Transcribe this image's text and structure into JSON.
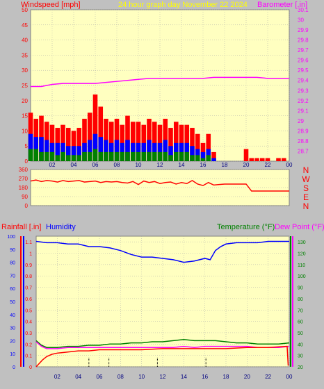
{
  "header": {
    "windspeed_label": "Windspeed [mph]",
    "graph_title": "24 hour graph day   November 22 2024",
    "barometer_label": "Barometer [.in]"
  },
  "panel3_header": {
    "rainfall_label": "Rainfall [.in]",
    "humidity_label": "Humidity",
    "temperature_label": "Temperature (°F)",
    "dewpoint_label": "Dew Point (°F)"
  },
  "colors": {
    "background": "#c0c0c0",
    "plot_bg": "#ffffc0",
    "gust": "#ff0000",
    "wind_avg": "#0000ff",
    "wind_low": "#008000",
    "barometer": "#ff00ff",
    "direction": "#ff0000",
    "humidity": "#0000ff",
    "temperature": "#008000",
    "dewpoint": "#ff00ff",
    "rain": "#ff0000",
    "title": "#ffff00",
    "grid": "#aaaaaa"
  },
  "chart_data": [
    {
      "type": "line",
      "panel": "wind-barometer",
      "title": "24 hour graph day   November 22 2024",
      "xlabel": "",
      "ylabel": "Windspeed [mph]",
      "y2label": "Barometer [.in]",
      "x_ticks": [
        "02",
        "04",
        "06",
        "08",
        "10",
        "12",
        "14",
        "16",
        "18",
        "20",
        "22",
        "00"
      ],
      "xlim": [
        0,
        24
      ],
      "ylim": [
        0,
        50
      ],
      "y_ticks": [
        0,
        5,
        10,
        15,
        20,
        25,
        30,
        35,
        40,
        45,
        50
      ],
      "y2lim": [
        28.6,
        30.1
      ],
      "y2_ticks": [
        "28.7",
        "28.8",
        "28.9",
        "29",
        "29.1",
        "29.2",
        "29.3",
        "29.4",
        "29.5",
        "29.6",
        "29.7",
        "29.8",
        "29.9",
        "30",
        "30.1"
      ],
      "grid": true,
      "series": [
        {
          "name": "Gust",
          "axis": "left",
          "style": "bars",
          "color": "#ff0000",
          "x": [
            0,
            0.5,
            1,
            1.5,
            2,
            2.5,
            3,
            3.5,
            4,
            4.5,
            5,
            5.5,
            6,
            6.5,
            7,
            7.5,
            8,
            8.5,
            9,
            9.5,
            10,
            10.5,
            11,
            11.5,
            12,
            12.5,
            13,
            13.5,
            14,
            14.5,
            15,
            15.5,
            16,
            16.5,
            17,
            17.5,
            18,
            18.5,
            19,
            19.5,
            20,
            20.5,
            21,
            21.5,
            22,
            22.5,
            23,
            23.5,
            24
          ],
          "values": [
            16,
            14,
            15,
            13,
            12,
            11,
            12,
            11,
            10,
            11,
            14,
            16,
            22,
            18,
            14,
            13,
            14,
            12,
            15,
            13,
            13,
            12,
            14,
            13,
            12,
            14,
            11,
            13,
            12,
            12,
            11,
            9,
            6,
            9,
            3,
            0,
            0,
            0,
            0,
            0,
            4,
            1,
            1,
            1,
            1,
            0,
            1,
            1,
            0
          ]
        },
        {
          "name": "Wind",
          "axis": "left",
          "style": "bars",
          "color": "#0000ff",
          "x": [
            0,
            0.5,
            1,
            1.5,
            2,
            2.5,
            3,
            3.5,
            4,
            4.5,
            5,
            5.5,
            6,
            6.5,
            7,
            7.5,
            8,
            8.5,
            9,
            9.5,
            10,
            10.5,
            11,
            11.5,
            12,
            12.5,
            13,
            13.5,
            14,
            14.5,
            15,
            15.5,
            16,
            16.5,
            17,
            17.5,
            18
          ],
          "values": [
            9,
            8,
            8,
            7,
            6,
            6,
            6,
            5,
            5,
            5,
            6,
            7,
            9,
            8,
            7,
            6,
            7,
            6,
            7,
            6,
            6,
            6,
            7,
            6,
            6,
            7,
            5,
            6,
            6,
            6,
            5,
            4,
            3,
            4,
            1,
            0,
            0
          ]
        },
        {
          "name": "Low",
          "axis": "left",
          "style": "bars",
          "color": "#008000",
          "x": [
            0,
            0.5,
            1,
            1.5,
            2,
            2.5,
            3,
            3.5,
            4,
            4.5,
            5,
            5.5,
            6,
            6.5,
            7,
            7.5,
            8,
            8.5,
            9,
            9.5,
            10,
            10.5,
            11,
            11.5,
            12,
            12.5,
            13,
            13.5,
            14,
            14.5,
            15,
            15.5,
            16,
            16.5,
            17,
            17.5,
            18
          ],
          "values": [
            4,
            4,
            3,
            3,
            3,
            2,
            3,
            2,
            2,
            2,
            3,
            3,
            4,
            3,
            3,
            3,
            3,
            3,
            3,
            3,
            3,
            3,
            3,
            3,
            3,
            3,
            2,
            3,
            3,
            3,
            2,
            2,
            1,
            2,
            0,
            0,
            0
          ]
        },
        {
          "name": "Barometer",
          "axis": "right",
          "style": "line",
          "color": "#ff00ff",
          "x": [
            0,
            1,
            2,
            3,
            4,
            5,
            6,
            7,
            8,
            9,
            10,
            11,
            12,
            13,
            14,
            15,
            16,
            17,
            18,
            19,
            20,
            21,
            22,
            23,
            24
          ],
          "values": [
            29.34,
            29.34,
            29.36,
            29.37,
            29.37,
            29.37,
            29.37,
            29.38,
            29.39,
            29.4,
            29.41,
            29.42,
            29.42,
            29.42,
            29.42,
            29.42,
            29.42,
            29.43,
            29.43,
            29.43,
            29.43,
            29.43,
            29.42,
            29.42,
            29.42
          ]
        }
      ]
    },
    {
      "type": "line",
      "panel": "wind-direction",
      "xlabel": "",
      "ylabel": "",
      "xlim": [
        0,
        24
      ],
      "ylim": [
        0,
        360
      ],
      "y_ticks": [
        0,
        90,
        180,
        270,
        360
      ],
      "compass_labels": [
        "N",
        "W",
        "S",
        "E",
        "N"
      ],
      "grid": true,
      "series": [
        {
          "name": "Direction",
          "color": "#ff0000",
          "x": [
            0,
            0.5,
            1,
            1.5,
            2,
            2.5,
            3,
            3.5,
            4,
            4.5,
            5,
            5.5,
            6,
            6.5,
            7,
            7.5,
            8,
            8.5,
            9,
            9.5,
            10,
            10.5,
            11,
            11.5,
            12,
            12.5,
            13,
            13.5,
            14,
            14.5,
            15,
            15.5,
            16,
            16.5,
            17,
            17.5,
            18,
            19,
            20,
            20.5,
            21,
            22,
            23,
            24
          ],
          "values": [
            245,
            255,
            240,
            250,
            245,
            235,
            250,
            240,
            245,
            250,
            235,
            240,
            245,
            230,
            240,
            235,
            240,
            230,
            225,
            240,
            210,
            245,
            230,
            240,
            220,
            230,
            235,
            215,
            230,
            220,
            250,
            215,
            200,
            230,
            205,
            210,
            215,
            215,
            215,
            145,
            145,
            145,
            145,
            145
          ]
        }
      ]
    },
    {
      "type": "line",
      "panel": "rain-humidity-temperature",
      "xlabel": "",
      "ylabel": "Rainfall [.in]",
      "y2label": "Temperature (°F)",
      "xlim": [
        0,
        24
      ],
      "rain_ylim": [
        0,
        1.15
      ],
      "rain_ticks": [
        "0",
        "0.1",
        "0.2",
        "0.3",
        "0.4",
        "0.5",
        "0.6",
        "0.7",
        "0.8",
        "0.9",
        "1",
        "1.1"
      ],
      "humidity_ylim": [
        0,
        100
      ],
      "humidity_ticks": [
        "0",
        "10",
        "20",
        "30",
        "40",
        "50",
        "60",
        "70",
        "80",
        "90",
        "100"
      ],
      "temp_ylim": [
        20,
        135
      ],
      "temp_ticks": [
        "20",
        "30",
        "40",
        "50",
        "60",
        "70",
        "80",
        "90",
        "100",
        "110",
        "120",
        "130"
      ],
      "grid": true,
      "series": [
        {
          "name": "Humidity",
          "axis": "humidity",
          "color": "#0000ff",
          "x": [
            0,
            1,
            2,
            3,
            4,
            5,
            6,
            7,
            8,
            9,
            10,
            11,
            12,
            13,
            14,
            15,
            16,
            16.5,
            17,
            17.5,
            18,
            19,
            20,
            21,
            22,
            23,
            24
          ],
          "values": [
            96,
            95,
            95,
            94,
            94,
            92,
            92,
            91,
            89,
            86,
            84,
            84,
            83,
            82,
            80,
            81,
            83,
            82,
            89,
            92,
            94,
            95,
            95,
            95,
            96,
            96,
            96
          ]
        },
        {
          "name": "Temperature",
          "axis": "temperature",
          "color": "#008000",
          "x": [
            0,
            0.5,
            1,
            2,
            3,
            4,
            5,
            6,
            7,
            8,
            9,
            10,
            11,
            12,
            13,
            14,
            15,
            16,
            17,
            18,
            19,
            20,
            21,
            22,
            23,
            24
          ],
          "values": [
            43,
            39,
            37,
            37,
            38,
            38,
            39,
            39,
            40,
            40,
            41,
            41,
            42,
            42,
            43,
            44,
            43,
            43,
            43,
            42,
            41,
            41,
            40,
            40,
            40,
            41
          ]
        },
        {
          "name": "Dew Point",
          "axis": "temperature",
          "color": "#ff00ff",
          "x": [
            0,
            0.5,
            1,
            2,
            3,
            4,
            5,
            6,
            7,
            8,
            9,
            10,
            11,
            12,
            13,
            14,
            15,
            16,
            17,
            18,
            19,
            20,
            21,
            22,
            23,
            24
          ],
          "values": [
            42,
            38,
            36,
            36,
            37,
            37,
            37,
            37,
            37,
            37,
            37,
            37,
            37,
            37,
            37,
            38,
            37,
            38,
            38,
            38,
            38,
            38,
            37,
            37,
            37,
            38
          ]
        },
        {
          "name": "Rainfall",
          "axis": "rain",
          "color": "#ff0000",
          "x": [
            0,
            0.2,
            0.6,
            1,
            1.5,
            2,
            3,
            4,
            5,
            6,
            7,
            8,
            10,
            12,
            14,
            16,
            18,
            20,
            22,
            23.8,
            23.9
          ],
          "values": [
            0,
            0.02,
            0.06,
            0.09,
            0.11,
            0.12,
            0.13,
            0.14,
            0.14,
            0.15,
            0.15,
            0.15,
            0.15,
            0.16,
            0.16,
            0.16,
            0.16,
            0.17,
            0.17,
            0.18,
            0.01
          ]
        }
      ],
      "markers": [
        {
          "x": 5
        },
        {
          "x": 6.9
        },
        {
          "x": 11.5
        },
        {
          "x": 16.1
        }
      ]
    }
  ]
}
